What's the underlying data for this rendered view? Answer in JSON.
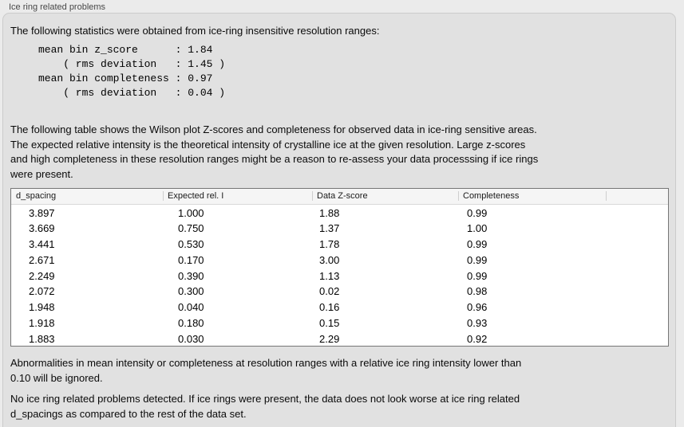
{
  "window": {
    "title": "Ice ring related problems"
  },
  "colors": {
    "page_bg": "#ebebeb",
    "panel_bg": "#e1e1e1",
    "table_bg": "#ffffff",
    "table_border": "#767676",
    "table_header_bg": "#f5f5f5"
  },
  "panel": {
    "intro": "The following statistics were obtained from ice-ring insensitive resolution ranges:",
    "stats_block": "mean bin z_score      : 1.84\n    ( rms deviation   : 1.45 )\nmean bin completeness : 0.97\n    ( rms deviation   : 0.04 )",
    "description": "The following table shows the Wilson plot Z-scores and completeness for observed data in ice-ring sensitive areas.\nThe expected relative intensity is the theoretical intensity of crystalline ice at the given resolution. Large z-scores\nand high completeness in these resolution ranges might be a reason to re-assess your data processsing if ice rings\nwere present.",
    "ignore_note": "Abnormalities in mean intensity or completeness at resolution ranges with a relative ice ring intensity lower than\n0.10 will be ignored.",
    "conclusion": "No ice ring related problems detected. If ice rings were present, the data does not look worse at ice ring related\nd_spacings as compared to the rest of the data set."
  },
  "table": {
    "columns": [
      "d_spacing",
      "Expected rel. I",
      "Data Z-score",
      "Completeness",
      ""
    ],
    "rows": [
      [
        "3.897",
        "1.000",
        "1.88",
        "0.99"
      ],
      [
        "3.669",
        "0.750",
        "1.37",
        "1.00"
      ],
      [
        "3.441",
        "0.530",
        "1.78",
        "0.99"
      ],
      [
        "2.671",
        "0.170",
        "3.00",
        "0.99"
      ],
      [
        "2.249",
        "0.390",
        "1.13",
        "0.99"
      ],
      [
        "2.072",
        "0.300",
        "0.02",
        "0.98"
      ],
      [
        "1.948",
        "0.040",
        "0.16",
        "0.96"
      ],
      [
        "1.918",
        "0.180",
        "0.15",
        "0.93"
      ],
      [
        "1.883",
        "0.030",
        "2.29",
        "0.92"
      ]
    ]
  }
}
